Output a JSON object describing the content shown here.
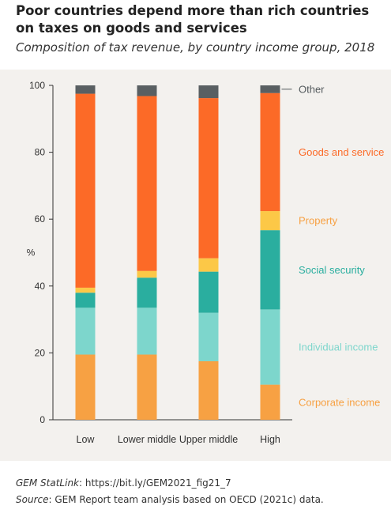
{
  "title": "Poor countries depend more than rich countries on taxes on goods and services",
  "subtitle": "Composition of tax revenue, by country income group, 2018",
  "footer": {
    "statlink_label": "GEM StatLink",
    "statlink_value": ": https://bit.ly/GEM2021_fig21_7",
    "source_label": "Source",
    "source_value": ": GEM Report team analysis based on OECD (2021c) data."
  },
  "chart_data": {
    "type": "bar",
    "stacked": true,
    "ylabel": "%",
    "ylim": [
      0,
      100
    ],
    "yticks": [
      0,
      20,
      40,
      60,
      80,
      100
    ],
    "categories": [
      "Low",
      "Lower middle",
      "Upper middle",
      "High"
    ],
    "series": [
      {
        "name": "Corporate income",
        "color": "#f7a143",
        "values": [
          19.5,
          19.5,
          17.5,
          10.5
        ]
      },
      {
        "name": "Individual income",
        "color": "#7dd6cc",
        "values": [
          14,
          14,
          14.5,
          22.5
        ]
      },
      {
        "name": "Social security",
        "color": "#2aae9f",
        "values": [
          4.5,
          9,
          12.3,
          23.7
        ]
      },
      {
        "name": "Property",
        "color": "#fcc847",
        "values": [
          1.5,
          2,
          4,
          5.7
        ]
      },
      {
        "name": "Goods and service",
        "color": "#fc6a27",
        "values": [
          58,
          52.3,
          47.9,
          35.3
        ]
      },
      {
        "name": "Other",
        "color": "#595f62",
        "values": [
          2.5,
          3.2,
          3.8,
          2.3
        ]
      }
    ],
    "legend_placement": "right, aligned to High bar segments"
  }
}
